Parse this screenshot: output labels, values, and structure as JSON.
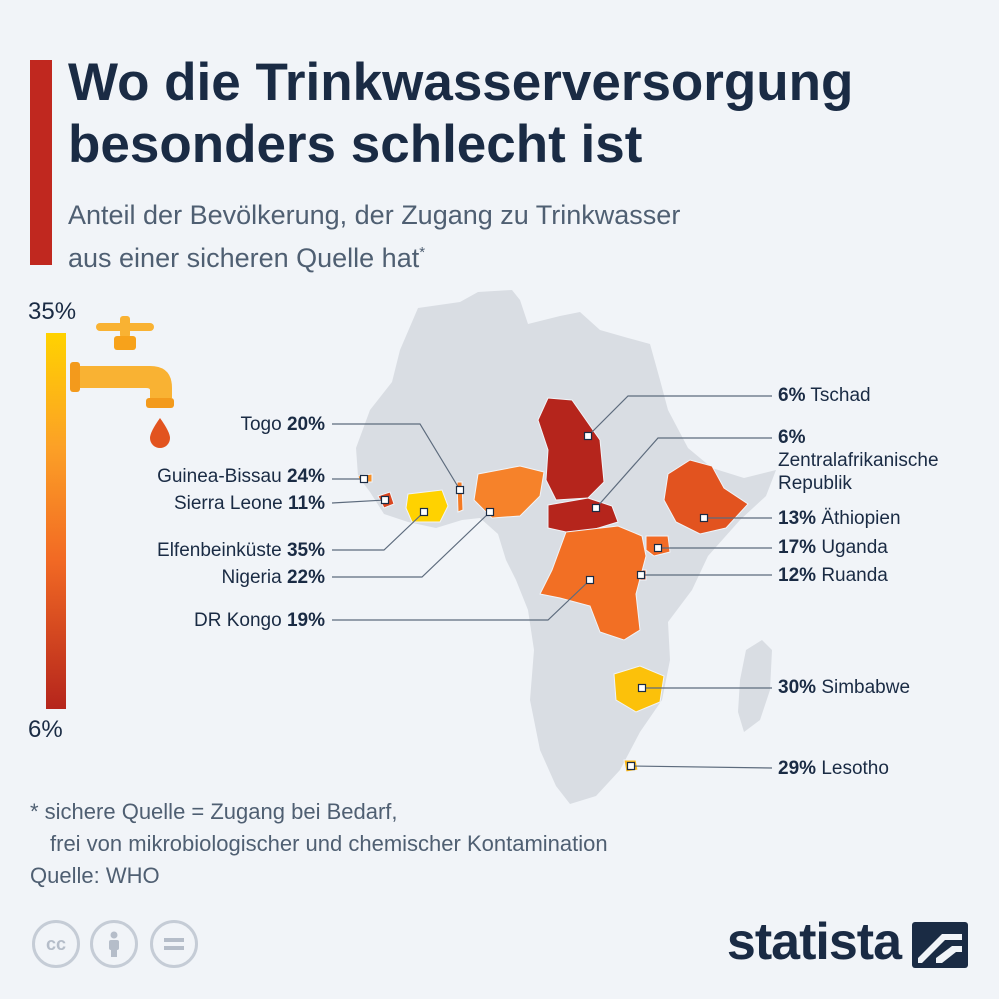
{
  "title_line1": "Wo die Trinkwasserversorgung",
  "title_line2": "besonders schlecht ist",
  "subtitle_line1": "Anteil der Bevölkerung, der Zugang zu Trinkwasser",
  "subtitle_line2": "aus einer sicheren Quelle hat",
  "subtitle_marker": "*",
  "legend": {
    "max_label": "35%",
    "min_label": "6%",
    "max_value": 35,
    "min_value": 6,
    "colors": [
      "#ffd200",
      "#fca126",
      "#f26a24",
      "#b5251c"
    ]
  },
  "countries": [
    {
      "name": "Tschad",
      "value": "6%",
      "color": "#b5251c"
    },
    {
      "name": "Zentralafrikanische",
      "name2": "Republik",
      "value": "6%",
      "color": "#b5251c"
    },
    {
      "name": "Äthiopien",
      "value": "13%",
      "color": "#e2531f"
    },
    {
      "name": "Uganda",
      "value": "17%",
      "color": "#f26a24"
    },
    {
      "name": "Ruanda",
      "value": "12%",
      "color": "#e04c1f"
    },
    {
      "name": "Simbabwe",
      "value": "30%",
      "color": "#fcc10a"
    },
    {
      "name": "Lesotho",
      "value": "29%",
      "color": "#fcb91a"
    },
    {
      "name": "Togo",
      "value": "20%",
      "color": "#f47a24"
    },
    {
      "name": "Guinea-Bissau",
      "value": "24%",
      "color": "#f88f25"
    },
    {
      "name": "Sierra Leone",
      "value": "11%",
      "color": "#da4620"
    },
    {
      "name": "Elfenbeinküste",
      "value": "35%",
      "color": "#ffd200"
    },
    {
      "name": "Nigeria",
      "value": "22%",
      "color": "#f6822a"
    },
    {
      "name": "DR Kongo",
      "value": "19%",
      "color": "#f26f24"
    }
  ],
  "footnote_line1": "* sichere Quelle = Zugang bei Bedarf,",
  "footnote_line2": "frei von mikrobiologischer und chemischer Kontamination",
  "source": "Quelle: WHO",
  "license_icons": [
    "cc-icon",
    "person-icon",
    "equals-icon"
  ],
  "brand": "statista"
}
